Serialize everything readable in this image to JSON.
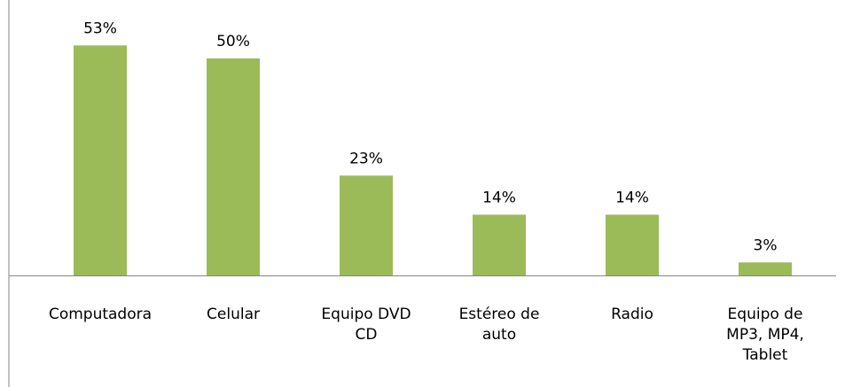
{
  "chart_data": {
    "type": "bar",
    "categories": [
      "Computadora",
      "Celular",
      "Equipo DVD CD",
      "Estéreo de auto",
      "Radio",
      "Equipo de MP3, MP4, Tablet"
    ],
    "values": [
      53,
      50,
      23,
      14,
      14,
      3
    ],
    "value_labels": [
      "53%",
      "50%",
      "23%",
      "14%",
      "14%",
      "3%"
    ],
    "color": "#9bbb59",
    "ylim": [
      0,
      60
    ]
  }
}
